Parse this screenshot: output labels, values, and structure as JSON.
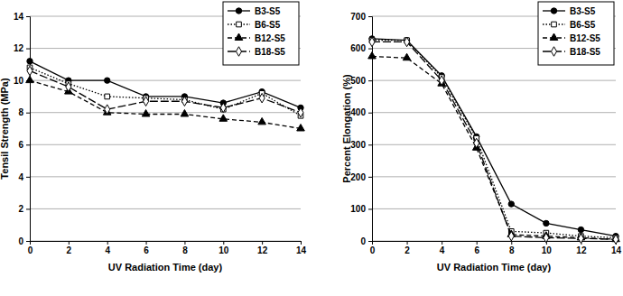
{
  "chart_data": [
    {
      "type": "line",
      "y_label": "Tensil Strength (MPa)",
      "x_label": "UV Radiation Time (day)",
      "x": [
        0,
        2,
        4,
        6,
        8,
        10,
        12,
        14
      ],
      "xlim": [
        0,
        14
      ],
      "xticks": [
        0,
        2,
        4,
        6,
        8,
        10,
        12,
        14
      ],
      "ylim": [
        0,
        14
      ],
      "yticks": [
        0,
        2,
        4,
        6,
        8,
        10,
        12,
        14
      ],
      "grid": true,
      "legend": "upper right",
      "series": [
        {
          "name": "B3-S5",
          "color": "#000000",
          "marker": "circle",
          "line_style": "solid",
          "values": [
            11.2,
            10.0,
            10.0,
            9.0,
            9.0,
            8.6,
            9.3,
            8.3
          ]
        },
        {
          "name": "B6-S5",
          "color": "#000000",
          "marker": "square-open",
          "line_style": "dotted",
          "values": [
            10.8,
            9.8,
            9.0,
            8.9,
            8.8,
            8.2,
            9.2,
            7.8
          ]
        },
        {
          "name": "B12-S5",
          "color": "#000000",
          "marker": "triangle",
          "line_style": "dashed",
          "values": [
            10.0,
            9.3,
            8.0,
            7.9,
            7.9,
            7.6,
            7.4,
            7.0
          ]
        },
        {
          "name": "B18-S5",
          "color": "#000000",
          "marker": "diamond-open",
          "line_style": "longdash",
          "values": [
            10.6,
            9.6,
            8.2,
            8.7,
            8.7,
            8.3,
            8.9,
            8.0
          ]
        }
      ]
    },
    {
      "type": "line",
      "y_label": "Percent Elongation (%)",
      "x_label": "UV Radiation Time (day)",
      "x": [
        0,
        2,
        4,
        6,
        8,
        10,
        12,
        14
      ],
      "xlim": [
        0,
        14
      ],
      "xticks": [
        0,
        2,
        4,
        6,
        8,
        10,
        12,
        14
      ],
      "ylim": [
        0,
        700
      ],
      "yticks": [
        0,
        100,
        200,
        300,
        400,
        500,
        600,
        700
      ],
      "grid": true,
      "legend": "upper right",
      "series": [
        {
          "name": "B3-S5",
          "color": "#000000",
          "marker": "circle",
          "line_style": "solid",
          "values": [
            630,
            625,
            515,
            325,
            115,
            55,
            35,
            15
          ]
        },
        {
          "name": "B6-S5",
          "color": "#000000",
          "marker": "square-open",
          "line_style": "dotted",
          "values": [
            625,
            625,
            510,
            320,
            30,
            25,
            15,
            10
          ]
        },
        {
          "name": "B12-S5",
          "color": "#000000",
          "marker": "triangle",
          "line_style": "dashed",
          "values": [
            575,
            570,
            490,
            290,
            20,
            15,
            10,
            5
          ]
        },
        {
          "name": "B18-S5",
          "color": "#000000",
          "marker": "diamond-open",
          "line_style": "longdash",
          "values": [
            620,
            620,
            500,
            305,
            15,
            10,
            8,
            5
          ]
        }
      ]
    }
  ]
}
